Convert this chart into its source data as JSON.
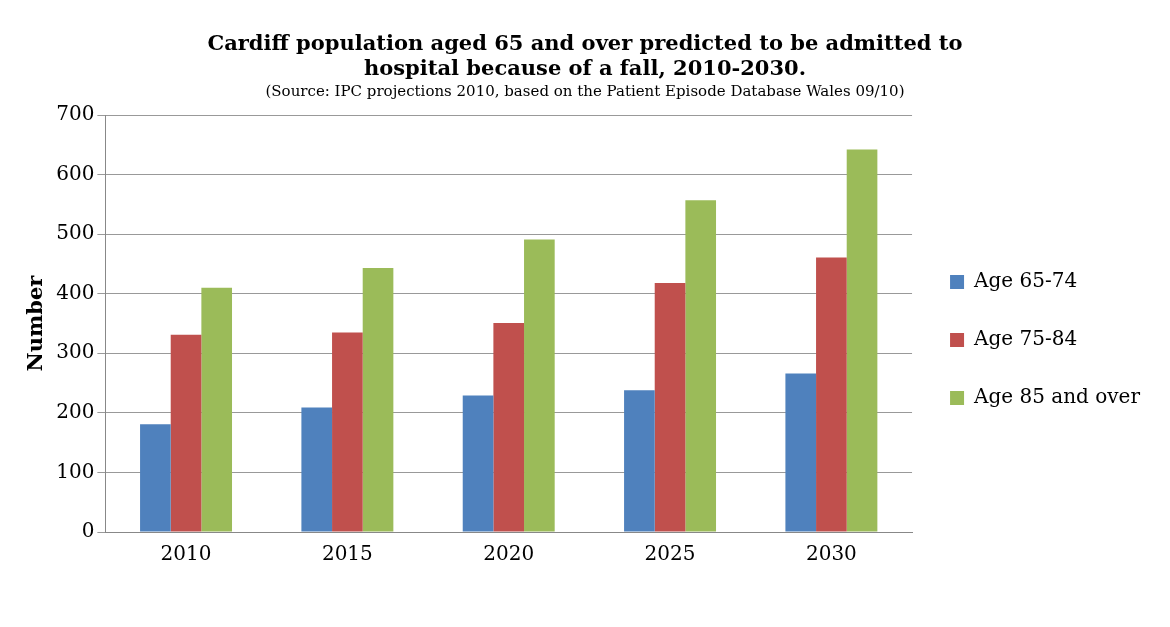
{
  "chart_data": {
    "type": "bar",
    "title": "Cardiff population aged 65 and over predicted to  be admitted to hospital because of a fall, 2010-2030.",
    "subtitle": "(Source: IPC projections 2010, based on the Patient Episode Database Wales 09/10)",
    "ylabel": "Number",
    "categories": [
      "2010",
      "2015",
      "2020",
      "2025",
      "2030"
    ],
    "series": [
      {
        "name": "Age 65-74",
        "color": "#4f81bd",
        "values": [
          181,
          209,
          229,
          238,
          266
        ]
      },
      {
        "name": "Age 75-84",
        "color": "#c0504d",
        "values": [
          331,
          335,
          351,
          418,
          461
        ]
      },
      {
        "name": "Age 85 and over",
        "color": "#9bbb59",
        "values": [
          410,
          443,
          491,
          557,
          642
        ]
      }
    ],
    "ylim": [
      0,
      700
    ],
    "yticks": [
      0,
      100,
      200,
      300,
      400,
      500,
      600,
      700
    ],
    "grid": "y",
    "legend": "right"
  }
}
